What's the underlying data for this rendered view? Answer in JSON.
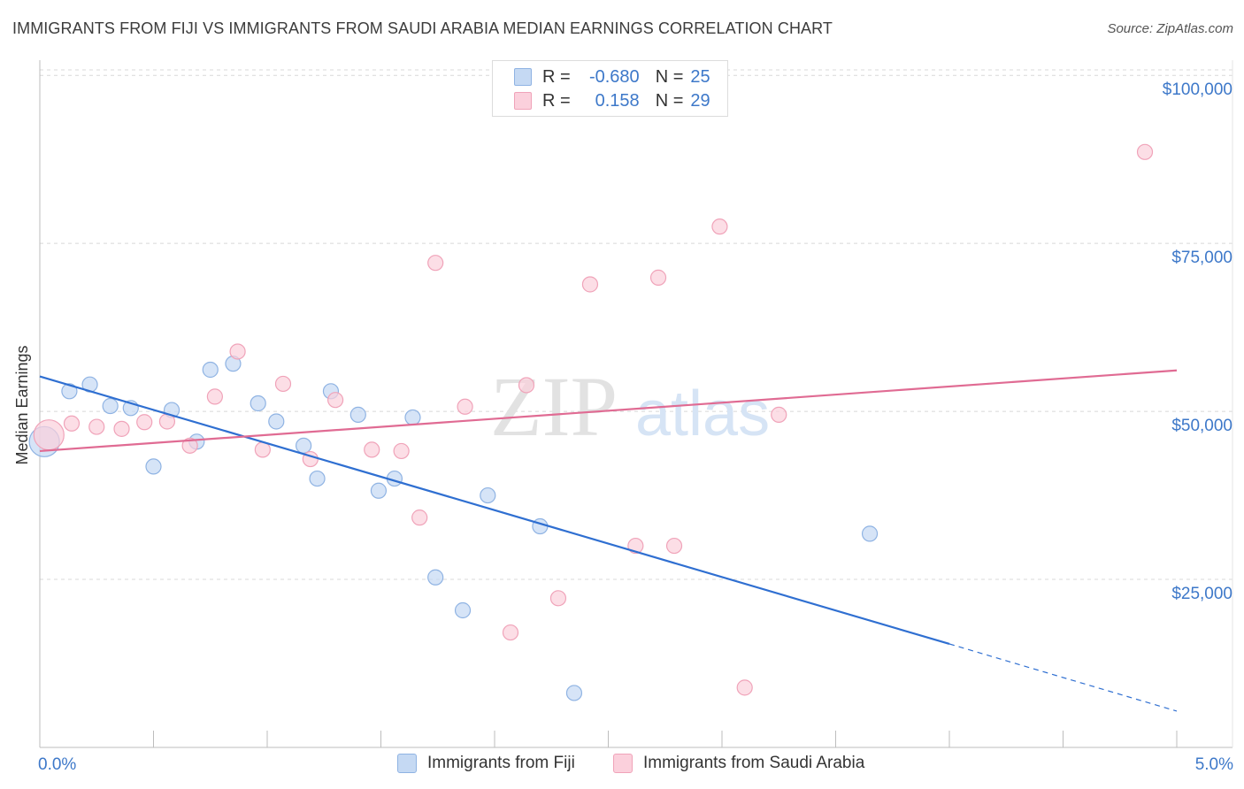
{
  "header": {
    "title": "IMMIGRANTS FROM FIJI VS IMMIGRANTS FROM SAUDI ARABIA MEDIAN EARNINGS CORRELATION CHART",
    "source": "Source: ZipAtlas.com"
  },
  "legend": {
    "rows": [
      {
        "r_label": "R =",
        "r_value": "-0.680",
        "n_label": "N =",
        "n_value": "25"
      },
      {
        "r_label": "R =",
        "r_value": "0.158",
        "n_label": "N =",
        "n_value": "29"
      }
    ],
    "bottom": [
      "Immigrants from Fiji",
      "Immigrants from Saudi Arabia"
    ]
  },
  "watermark": {
    "zip": "ZIP",
    "atlas": "atlas"
  },
  "chart_data": {
    "type": "scatter",
    "title": "IMMIGRANTS FROM FIJI VS IMMIGRANTS FROM SAUDI ARABIA MEDIAN EARNINGS CORRELATION CHART",
    "xlabel": "",
    "ylabel": "Median Earnings",
    "xlim": [
      0,
      5
    ],
    "ylim": [
      0,
      102000
    ],
    "x_tick_labels": [
      "0.0%",
      "5.0%"
    ],
    "y_ticks": [
      25000,
      50000,
      75000,
      100000
    ],
    "y_tick_labels": [
      "$25,000",
      "$50,000",
      "$75,000",
      "$100,000"
    ],
    "grid": true,
    "colors": {
      "fiji_fill": "#c5d9f3",
      "fiji_stroke": "#8fb3e3",
      "fiji_line": "#2f6fd1",
      "saudi_fill": "#fbd0dc",
      "saudi_stroke": "#f0a3b9",
      "saudi_line": "#e06b93",
      "tick_text": "#3d78c9",
      "grid": "#d8d8d8"
    },
    "series": [
      {
        "name": "Immigrants from Fiji",
        "r": -0.68,
        "n": 25,
        "points": [
          {
            "x": 0.02,
            "y": 45500,
            "size": "large"
          },
          {
            "x": 0.13,
            "y": 53000
          },
          {
            "x": 0.22,
            "y": 54000
          },
          {
            "x": 0.31,
            "y": 50800
          },
          {
            "x": 0.4,
            "y": 50500
          },
          {
            "x": 0.5,
            "y": 41800
          },
          {
            "x": 0.58,
            "y": 50200
          },
          {
            "x": 0.69,
            "y": 45500
          },
          {
            "x": 0.75,
            "y": 56200
          },
          {
            "x": 0.85,
            "y": 57100
          },
          {
            "x": 0.96,
            "y": 51200
          },
          {
            "x": 1.04,
            "y": 48500
          },
          {
            "x": 1.16,
            "y": 44900
          },
          {
            "x": 1.22,
            "y": 40000
          },
          {
            "x": 1.28,
            "y": 53000
          },
          {
            "x": 1.4,
            "y": 49500
          },
          {
            "x": 1.49,
            "y": 38200
          },
          {
            "x": 1.56,
            "y": 40000
          },
          {
            "x": 1.64,
            "y": 49100
          },
          {
            "x": 1.74,
            "y": 25300
          },
          {
            "x": 1.86,
            "y": 20400
          },
          {
            "x": 1.97,
            "y": 37500
          },
          {
            "x": 2.2,
            "y": 32900
          },
          {
            "x": 2.35,
            "y": 8100
          },
          {
            "x": 3.65,
            "y": 31800
          }
        ],
        "trend": {
          "x0": 0.0,
          "y0": 55200,
          "x1": 4.0,
          "y1": 15400,
          "dash_to_x": 5.0,
          "dash_to_y": 5400
        }
      },
      {
        "name": "Immigrants from Saudi Arabia",
        "r": 0.158,
        "n": 29,
        "points": [
          {
            "x": 0.04,
            "y": 46500,
            "size": "large"
          },
          {
            "x": 0.14,
            "y": 48200
          },
          {
            "x": 0.25,
            "y": 47700
          },
          {
            "x": 0.36,
            "y": 47400
          },
          {
            "x": 0.46,
            "y": 48400
          },
          {
            "x": 0.56,
            "y": 48500
          },
          {
            "x": 0.66,
            "y": 44900
          },
          {
            "x": 0.77,
            "y": 52200
          },
          {
            "x": 0.87,
            "y": 58900
          },
          {
            "x": 0.98,
            "y": 44300
          },
          {
            "x": 1.07,
            "y": 54100
          },
          {
            "x": 1.19,
            "y": 42900
          },
          {
            "x": 1.3,
            "y": 51700
          },
          {
            "x": 1.46,
            "y": 44300
          },
          {
            "x": 1.59,
            "y": 44100
          },
          {
            "x": 1.67,
            "y": 34200
          },
          {
            "x": 1.74,
            "y": 72100
          },
          {
            "x": 1.87,
            "y": 50700
          },
          {
            "x": 2.07,
            "y": 17100
          },
          {
            "x": 2.14,
            "y": 53900
          },
          {
            "x": 2.28,
            "y": 22200
          },
          {
            "x": 2.42,
            "y": 68900
          },
          {
            "x": 2.62,
            "y": 30000
          },
          {
            "x": 2.72,
            "y": 69900
          },
          {
            "x": 2.79,
            "y": 30000
          },
          {
            "x": 2.99,
            "y": 77500
          },
          {
            "x": 3.1,
            "y": 8900
          },
          {
            "x": 3.25,
            "y": 49500
          },
          {
            "x": 4.86,
            "y": 88600
          }
        ],
        "trend": {
          "x0": 0.0,
          "y0": 44100,
          "x1": 5.0,
          "y1": 56100
        }
      }
    ]
  }
}
